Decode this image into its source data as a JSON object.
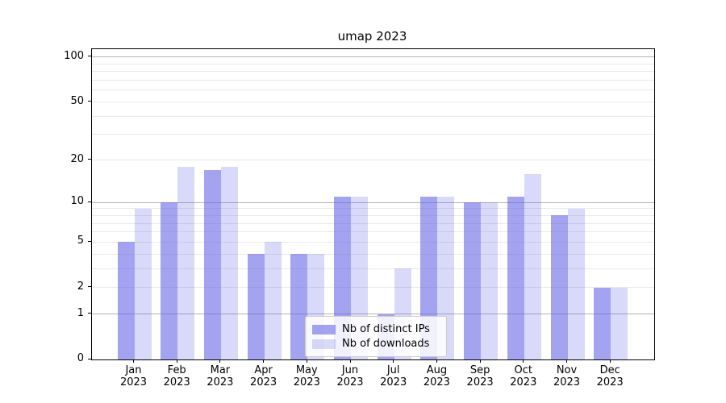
{
  "figure": {
    "title": "umap 2023"
  },
  "chart_data": {
    "type": "bar",
    "title": "umap 2023",
    "categories": [
      "Jan",
      "Feb",
      "Mar",
      "Apr",
      "May",
      "Jun",
      "Jul",
      "Aug",
      "Sep",
      "Oct",
      "Nov",
      "Dec"
    ],
    "year_label": "2023",
    "series": [
      {
        "name": "Nb of distinct IPs",
        "color": "rgba(102,102,230,0.60)",
        "values": [
          5,
          10,
          17,
          4,
          4,
          11,
          1,
          11,
          10,
          11,
          8,
          2
        ]
      },
      {
        "name": "Nb of downloads",
        "color": "rgba(102,102,230,0.25)",
        "values": [
          9,
          18,
          18,
          5,
          4,
          11,
          3,
          11,
          10,
          16,
          9,
          2
        ]
      }
    ],
    "xlabel": "",
    "ylabel": "",
    "yscale": "log10(1+x)",
    "ylim": [
      0,
      113
    ],
    "yticks": [
      0,
      1,
      2,
      5,
      10,
      20,
      50,
      100
    ],
    "grid": {
      "on": true,
      "major_values": [
        1,
        10,
        100
      ],
      "minor_values": [
        2,
        3,
        4,
        5,
        6,
        7,
        8,
        9,
        20,
        30,
        40,
        50,
        60,
        70,
        80,
        90
      ],
      "major_color": "#b2b2b2",
      "minor_color": "#e9e9e9"
    },
    "legend": {
      "position": "lower center inside plot",
      "entries": [
        "Nb of distinct IPs",
        "Nb of downloads"
      ]
    }
  }
}
